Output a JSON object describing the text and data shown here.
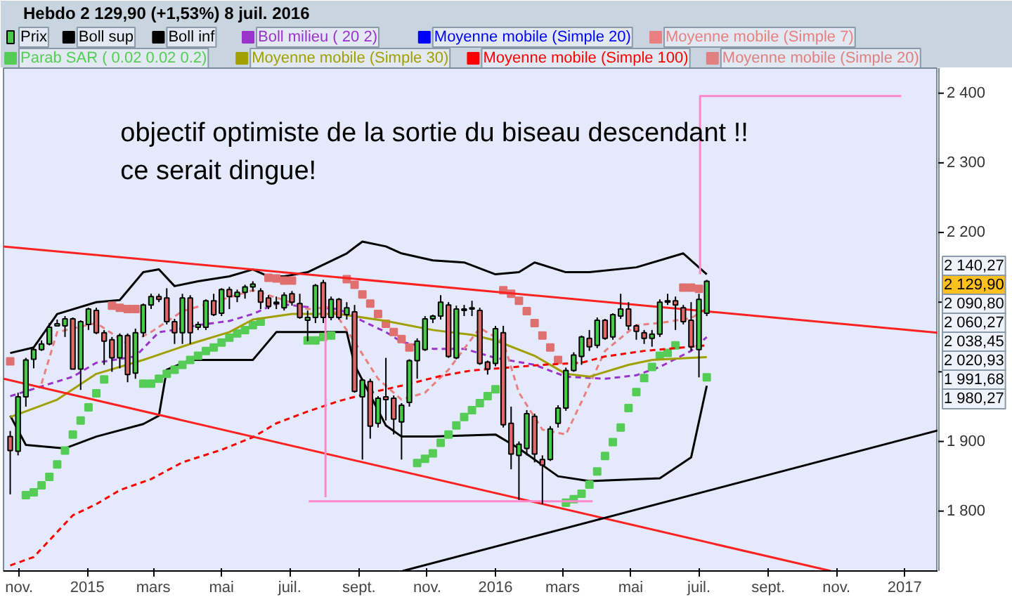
{
  "chart_data": {
    "type": "candlestick",
    "title": "Hebdo   2 129,90 (+1,53%)   8 juil. 2016",
    "legend": "top",
    "grid": false,
    "xlim": [
      "2014-10-18",
      "2017-01-31"
    ],
    "xticks": [
      {
        "value": "2014-11-01",
        "label": "nov."
      },
      {
        "value": "2015-01-01",
        "label": "2015"
      },
      {
        "value": "2015-03-01",
        "label": "mars"
      },
      {
        "value": "2015-05-01",
        "label": "mai"
      },
      {
        "value": "2015-07-01",
        "label": "juil."
      },
      {
        "value": "2015-09-01",
        "label": "sept."
      },
      {
        "value": "2015-11-01",
        "label": "nov."
      },
      {
        "value": "2016-01-01",
        "label": "2016"
      },
      {
        "value": "2016-03-01",
        "label": "mars"
      },
      {
        "value": "2016-05-01",
        "label": "mai"
      },
      {
        "value": "2016-07-01",
        "label": "juil."
      },
      {
        "value": "2016-09-01",
        "label": "sept."
      },
      {
        "value": "2016-11-01",
        "label": "nov."
      },
      {
        "value": "2017-01-01",
        "label": "2017"
      }
    ],
    "ylim": [
      1714,
      2436
    ],
    "yticks": [
      {
        "value": 1800,
        "label": "1 800"
      },
      {
        "value": 1900,
        "label": "1 900"
      },
      {
        "value": 2000,
        "label": null
      },
      {
        "value": 2100,
        "label": null
      },
      {
        "value": 2200,
        "label": "2 200"
      },
      {
        "value": 2300,
        "label": "2 300"
      },
      {
        "value": 2400,
        "label": "2 400"
      }
    ],
    "annotations": [
      "objectif optimiste de la sortie du biseau descendant !!",
      "ce serait dingue!",
      "2 140,27",
      "2 129,90",
      "2 090,80",
      "2 060,27",
      "2 038,45",
      "2 020,93",
      "1 991,68",
      "1 980,27"
    ],
    "series": [
      {
        "name": "Prix",
        "color": "#000000",
        "x": [
          "2014-10-24",
          "2014-10-31",
          "2014-11-07",
          "2014-11-14",
          "2014-11-21",
          "2014-11-28",
          "2014-12-05",
          "2014-12-12",
          "2014-12-19",
          "2014-12-26",
          "2015-01-02",
          "2015-01-09",
          "2015-01-16",
          "2015-01-23",
          "2015-01-30",
          "2015-02-06",
          "2015-02-13",
          "2015-02-20",
          "2015-02-27",
          "2015-03-06",
          "2015-03-13",
          "2015-03-20",
          "2015-03-27",
          "2015-04-03",
          "2015-04-10",
          "2015-04-17",
          "2015-04-24",
          "2015-05-01",
          "2015-05-08",
          "2015-05-15",
          "2015-05-22",
          "2015-05-29",
          "2015-06-05",
          "2015-06-12",
          "2015-06-19",
          "2015-06-26",
          "2015-07-03",
          "2015-07-10",
          "2015-07-17",
          "2015-07-24",
          "2015-07-31",
          "2015-08-07",
          "2015-08-14",
          "2015-08-21",
          "2015-08-28",
          "2015-09-04",
          "2015-09-11",
          "2015-09-18",
          "2015-09-25",
          "2015-10-02",
          "2015-10-09",
          "2015-10-16",
          "2015-10-23",
          "2015-10-30",
          "2015-11-06",
          "2015-11-13",
          "2015-11-20",
          "2015-11-27",
          "2015-12-04",
          "2015-12-11",
          "2015-12-18",
          "2015-12-25",
          "2016-01-01",
          "2016-01-08",
          "2016-01-15",
          "2016-01-22",
          "2016-01-29",
          "2016-02-05",
          "2016-02-12",
          "2016-02-19",
          "2016-02-26",
          "2016-03-04",
          "2016-03-11",
          "2016-03-18",
          "2016-03-25",
          "2016-04-01",
          "2016-04-08",
          "2016-04-15",
          "2016-04-22",
          "2016-04-29",
          "2016-05-06",
          "2016-05-13",
          "2016-05-20",
          "2016-05-27",
          "2016-06-03",
          "2016-06-10",
          "2016-06-17",
          "2016-06-24",
          "2016-07-01",
          "2016-07-08"
        ],
        "ohlc": [
          [
            1907,
            1915,
            1824,
            1887
          ],
          [
            1886,
            1970,
            1880,
            1964
          ],
          [
            1964,
            2020,
            1950,
            2017
          ],
          [
            2018,
            2035,
            2005,
            2032
          ],
          [
            2032,
            2045,
            2030,
            2040
          ],
          [
            2040,
            2070,
            2038,
            2064
          ],
          [
            2066,
            2075,
            2065,
            2069
          ],
          [
            2066,
            2080,
            2050,
            2076
          ],
          [
            2076,
            2078,
            2004,
            2004
          ],
          [
            2004,
            2074,
            1974,
            2072
          ],
          [
            2068,
            2092,
            2060,
            2090
          ],
          [
            2088,
            2092,
            2054,
            2056
          ],
          [
            2056,
            2060,
            2010,
            2044
          ],
          [
            2046,
            2050,
            2000,
            2020
          ],
          [
            2020,
            2055,
            2005,
            2052
          ],
          [
            2052,
            2055,
            1985,
            1996
          ],
          [
            1998,
            2062,
            1990,
            2056
          ],
          [
            2056,
            2098,
            2050,
            2096
          ],
          [
            2096,
            2112,
            2090,
            2108
          ],
          [
            2108,
            2112,
            2100,
            2104
          ],
          [
            2106,
            2120,
            2068,
            2072
          ],
          [
            2072,
            2076,
            2040,
            2056
          ],
          [
            2056,
            2112,
            2040,
            2106
          ],
          [
            2106,
            2110,
            2040,
            2056
          ],
          [
            2064,
            2072,
            2060,
            2068
          ],
          [
            2064,
            2104,
            2060,
            2102
          ],
          [
            2102,
            2112,
            2080,
            2082
          ],
          [
            2084,
            2120,
            2080,
            2118
          ],
          [
            2118,
            2122,
            2090,
            2108
          ],
          [
            2108,
            2118,
            2100,
            2114
          ],
          [
            2114,
            2125,
            2105,
            2122
          ],
          [
            2122,
            2130,
            2115,
            2126
          ],
          [
            2116,
            2120,
            2090,
            2100
          ],
          [
            2106,
            2110,
            2090,
            2094
          ],
          [
            2100,
            2108,
            2090,
            2098
          ],
          [
            2092,
            2114,
            2088,
            2110
          ],
          [
            2112,
            2116,
            2095,
            2100
          ],
          [
            2098,
            2112,
            2076,
            2078
          ],
          [
            2074,
            2088,
            2044,
            2078
          ],
          [
            2078,
            2126,
            2070,
            2124
          ],
          [
            2128,
            2132,
            2070,
            2078
          ],
          [
            2078,
            2108,
            2074,
            2104
          ],
          [
            2104,
            2106,
            2075,
            2078
          ],
          [
            2082,
            2100,
            2075,
            2092
          ],
          [
            2086,
            2096,
            1970,
            1972
          ],
          [
            1964,
            1990,
            1874,
            1988
          ],
          [
            1986,
            1990,
            1904,
            1922
          ],
          [
            1926,
            1965,
            1920,
            1962
          ],
          [
            1964,
            2020,
            1930,
            1960
          ],
          [
            1962,
            1966,
            1910,
            1932
          ],
          [
            1928,
            1955,
            1874,
            1952
          ],
          [
            1956,
            2018,
            1950,
            2016
          ],
          [
            2016,
            2048,
            1990,
            2044
          ],
          [
            2032,
            2080,
            2030,
            2076
          ],
          [
            2076,
            2082,
            2070,
            2080
          ],
          [
            2080,
            2110,
            2075,
            2100
          ],
          [
            2096,
            2100,
            2020,
            2022
          ],
          [
            2020,
            2095,
            2018,
            2090
          ],
          [
            2090,
            2096,
            2080,
            2088
          ],
          [
            2090,
            2102,
            2080,
            2092
          ],
          [
            2088,
            2092,
            2010,
            2012
          ],
          [
            2014,
            2016,
            1996,
            2004
          ],
          [
            2012,
            2066,
            2008,
            2062
          ],
          [
            2056,
            2066,
            1920,
            1924
          ],
          [
            1926,
            1950,
            1860,
            1882
          ],
          [
            1880,
            1900,
            1816,
            1896
          ],
          [
            1890,
            1945,
            1880,
            1940
          ],
          [
            1936,
            1940,
            1870,
            1882
          ],
          [
            1874,
            1880,
            1810,
            1866
          ],
          [
            1874,
            1922,
            1872,
            1918
          ],
          [
            1926,
            1952,
            1920,
            1948
          ],
          [
            1948,
            2006,
            1944,
            2002
          ],
          [
            2002,
            2028,
            2000,
            2024
          ],
          [
            2022,
            2052,
            2010,
            2050
          ],
          [
            2048,
            2060,
            2030,
            2036
          ],
          [
            2038,
            2078,
            2034,
            2074
          ],
          [
            2074,
            2076,
            2046,
            2048
          ],
          [
            2050,
            2084,
            2046,
            2082
          ],
          [
            2080,
            2112,
            2076,
            2090
          ],
          [
            2090,
            2100,
            2060,
            2066
          ],
          [
            2066,
            2068,
            2046,
            2058
          ],
          [
            2056,
            2060,
            2040,
            2048
          ],
          [
            2048,
            2060,
            2036,
            2054
          ],
          [
            2054,
            2104,
            2050,
            2100
          ],
          [
            2100,
            2112,
            2096,
            2102
          ],
          [
            2102,
            2108,
            2060,
            2096
          ],
          [
            2092,
            2096,
            2068,
            2072
          ],
          [
            2074,
            2100,
            2030,
            2036
          ],
          [
            2032,
            2112,
            1992,
            2104
          ],
          [
            2084,
            2132,
            2080,
            2130
          ]
        ]
      },
      {
        "name": "Boll sup",
        "type": "line",
        "color": "#000000",
        "line_style": "solid",
        "x": [
          "2014-10-24",
          "2014-11-14",
          "2014-12-05",
          "2015-01-09",
          "2015-01-30",
          "2015-02-20",
          "2015-03-06",
          "2015-03-20",
          "2015-04-10",
          "2015-05-08",
          "2015-05-29",
          "2015-06-12",
          "2015-06-26",
          "2015-07-17",
          "2015-08-21",
          "2015-09-04",
          "2015-09-25",
          "2015-10-09",
          "2015-11-06",
          "2015-12-04",
          "2016-01-01",
          "2016-01-22",
          "2016-02-05",
          "2016-03-04",
          "2016-03-25",
          "2016-05-06",
          "2016-06-17",
          "2016-07-08"
        ],
        "values": [
          2027,
          2035,
          2083,
          2100,
          2103,
          2143,
          2147,
          2123,
          2130,
          2137,
          2147,
          2137,
          2137,
          2143,
          2170,
          2187,
          2180,
          2170,
          2160,
          2157,
          2140,
          2143,
          2157,
          2143,
          2143,
          2150,
          2170,
          2140
        ]
      },
      {
        "name": "Boll inf",
        "type": "line",
        "color": "#000000",
        "line_style": "solid",
        "x": [
          "2014-10-24",
          "2014-11-07",
          "2014-12-12",
          "2015-01-09",
          "2015-02-20",
          "2015-03-06",
          "2015-03-13",
          "2015-04-03",
          "2015-05-29",
          "2015-06-19",
          "2015-08-21",
          "2015-08-28",
          "2015-09-25",
          "2015-10-09",
          "2015-11-06",
          "2016-01-01",
          "2016-01-22",
          "2016-02-26",
          "2016-03-25",
          "2016-05-27",
          "2016-06-24",
          "2016-07-08"
        ],
        "values": [
          1937,
          1895,
          1890,
          1907,
          1925,
          1937,
          2003,
          2017,
          2017,
          2057,
          2057,
          2010,
          1923,
          1907,
          1907,
          1910,
          1890,
          1850,
          1843,
          1847,
          1877,
          1980
        ]
      },
      {
        "name": "Boll milieu ( 20 2)",
        "type": "line",
        "color": "#9933cc",
        "line_style": "dashed",
        "x": [
          "2014-10-24",
          "2014-12-19",
          "2015-01-09",
          "2015-02-13",
          "2015-03-06",
          "2015-03-20",
          "2015-04-10",
          "2015-05-08",
          "2015-05-29",
          "2015-06-19",
          "2015-07-17",
          "2015-08-14",
          "2015-09-04",
          "2015-09-25",
          "2015-10-09",
          "2015-11-06",
          "2015-12-04",
          "2016-01-01",
          "2016-02-05",
          "2016-03-04",
          "2016-04-08",
          "2016-05-06",
          "2016-05-27",
          "2016-06-24",
          "2016-07-08"
        ],
        "values": [
          1965,
          1993,
          2013,
          2022,
          2057,
          2060,
          2067,
          2073,
          2083,
          2098,
          2093,
          2090,
          2073,
          2057,
          2043,
          2033,
          2033,
          2020,
          2010,
          1993,
          1990,
          1995,
          2007,
          2030,
          2050
        ]
      },
      {
        "name": "Moyenne mobile (Simple 20)",
        "type": "line",
        "color": "#0000ff"
      },
      {
        "name": "Moyenne mobile (Simple 7)",
        "type": "line",
        "color": "#e88080",
        "line_style": "dashed",
        "x": [
          "2014-11-21",
          "2014-12-05",
          "2015-01-09",
          "2015-02-06",
          "2015-02-27",
          "2015-03-27",
          "2015-04-24",
          "2015-05-29",
          "2015-06-26",
          "2015-07-17",
          "2015-08-07",
          "2015-08-28",
          "2015-09-18",
          "2015-10-09",
          "2015-10-30",
          "2015-11-20",
          "2015-12-18",
          "2016-01-08",
          "2016-01-22",
          "2016-02-12",
          "2016-03-04",
          "2016-03-18",
          "2016-04-08",
          "2016-05-06",
          "2016-05-27",
          "2016-06-24",
          "2016-07-08"
        ],
        "values": [
          1983,
          2057,
          2070,
          2040,
          2057,
          2087,
          2100,
          2117,
          2103,
          2090,
          2093,
          2043,
          1990,
          1960,
          1970,
          2003,
          2063,
          2043,
          1970,
          1917,
          1910,
          1957,
          2030,
          2067,
          2070,
          2077,
          2091
        ]
      },
      {
        "name": "Parab SAR ( 0.02 0.02 0.2)",
        "type": "scatter",
        "color": "#55cc55",
        "marker": "square",
        "x": [
          "2014-10-24",
          "2014-11-07",
          "2014-11-14",
          "2014-11-21",
          "2014-11-28",
          "2014-12-05",
          "2014-12-12",
          "2014-12-19",
          "2014-12-26",
          "2015-01-02",
          "2015-01-09",
          "2015-01-16",
          "2015-01-23",
          "2015-01-30",
          "2015-02-06",
          "2015-02-13",
          "2015-02-20",
          "2015-02-27",
          "2015-03-06",
          "2015-03-13",
          "2015-03-20",
          "2015-03-27",
          "2015-04-03",
          "2015-04-10",
          "2015-04-17",
          "2015-04-24",
          "2015-05-01",
          "2015-05-08",
          "2015-05-15",
          "2015-05-22",
          "2015-05-29",
          "2015-06-05",
          "2015-06-12",
          "2015-06-19",
          "2015-06-26",
          "2015-07-03",
          "2015-07-17",
          "2015-07-24",
          "2015-07-31",
          "2015-08-07",
          "2015-08-21",
          "2015-08-28",
          "2015-09-04",
          "2015-09-11",
          "2015-09-18",
          "2015-09-25",
          "2015-10-02",
          "2015-10-09",
          "2015-10-16",
          "2015-10-23",
          "2015-10-30",
          "2015-11-06",
          "2015-11-13",
          "2015-11-20",
          "2015-11-27",
          "2015-12-04",
          "2015-12-11",
          "2015-12-18",
          "2015-12-25",
          "2016-01-01",
          "2016-01-08",
          "2016-01-15",
          "2016-01-22",
          "2016-01-29",
          "2016-02-05",
          "2016-02-12",
          "2016-02-19",
          "2016-02-26",
          "2016-03-04",
          "2016-03-11",
          "2016-03-18",
          "2016-03-25",
          "2016-04-01",
          "2016-04-08",
          "2016-04-15",
          "2016-04-22",
          "2016-04-29",
          "2016-05-06",
          "2016-05-13",
          "2016-05-20",
          "2016-05-27",
          "2016-06-03",
          "2016-06-10",
          "2016-06-17",
          "2016-06-24",
          "2016-07-01",
          "2016-07-08"
        ],
        "values": [
          2015,
          1823,
          1827,
          1837,
          1849,
          1867,
          1887,
          1910,
          1930,
          1949,
          1969,
          1989,
          2095,
          2092,
          2090,
          2090,
          1983,
          1983,
          1990,
          1997,
          2003,
          2010,
          2017,
          2023,
          2030,
          2035,
          2042,
          2049,
          2055,
          2060,
          2067,
          2072,
          2135,
          2134,
          2131,
          2131,
          2045,
          2045,
          2050,
          2052,
          2133,
          2125,
          2111,
          2098,
          2083,
          2069,
          2057,
          2047,
          2035,
          1869,
          1875,
          1883,
          1898,
          1910,
          1923,
          1935,
          1945,
          1955,
          1965,
          1975,
          2117,
          2112,
          2102,
          2087,
          2070,
          2052,
          2035,
          2017,
          1812,
          1817,
          1825,
          1838,
          1857,
          1879,
          1899,
          1920,
          1948,
          1971,
          1991,
          2007,
          2023,
          2027,
          2038,
          2121,
          2121,
          2119,
          1992
        ],
        "colors": [
          "#e07070",
          "#55cc55",
          "#55cc55",
          "#55cc55",
          "#55cc55",
          "#55cc55",
          "#55cc55",
          "#55cc55",
          "#55cc55",
          "#55cc55",
          "#55cc55",
          "#55cc55",
          "#e07070",
          "#e07070",
          "#e07070",
          "#e07070",
          "#55cc55",
          "#55cc55",
          "#55cc55",
          "#55cc55",
          "#55cc55",
          "#55cc55",
          "#55cc55",
          "#55cc55",
          "#55cc55",
          "#55cc55",
          "#55cc55",
          "#55cc55",
          "#55cc55",
          "#55cc55",
          "#55cc55",
          "#55cc55",
          "#e07070",
          "#e07070",
          "#e07070",
          "#e07070",
          "#55cc55",
          "#55cc55",
          "#55cc55",
          "#55cc55",
          "#e07070",
          "#e07070",
          "#e07070",
          "#e07070",
          "#e07070",
          "#e07070",
          "#e07070",
          "#e07070",
          "#e07070",
          "#55cc55",
          "#55cc55",
          "#55cc55",
          "#55cc55",
          "#55cc55",
          "#55cc55",
          "#55cc55",
          "#55cc55",
          "#55cc55",
          "#55cc55",
          "#55cc55",
          "#e07070",
          "#e07070",
          "#e07070",
          "#e07070",
          "#e07070",
          "#e07070",
          "#e07070",
          "#e07070",
          "#55cc55",
          "#55cc55",
          "#55cc55",
          "#55cc55",
          "#55cc55",
          "#55cc55",
          "#55cc55",
          "#55cc55",
          "#55cc55",
          "#55cc55",
          "#55cc55",
          "#55cc55",
          "#55cc55",
          "#55cc55",
          "#55cc55",
          "#e07070",
          "#e07070",
          "#e07070",
          "#55cc55"
        ]
      },
      {
        "name": "Moyenne mobile (Simple 30)",
        "type": "line",
        "color": "#a0a000",
        "line_style": "solid",
        "x": [
          "2014-10-24",
          "2014-12-05",
          "2015-01-09",
          "2015-02-20",
          "2015-04-03",
          "2015-05-08",
          "2015-05-29",
          "2015-07-03",
          "2015-08-14",
          "2015-09-25",
          "2015-11-06",
          "2015-12-11",
          "2016-01-01",
          "2016-02-05",
          "2016-03-04",
          "2016-03-25",
          "2016-04-29",
          "2016-05-20",
          "2016-06-24",
          "2016-07-08"
        ],
        "values": [
          1935,
          1960,
          1997,
          2017,
          2040,
          2057,
          2075,
          2083,
          2083,
          2073,
          2060,
          2053,
          2045,
          2023,
          1997,
          1993,
          2010,
          2017,
          2020,
          2021
        ]
      },
      {
        "name": "Moyenne mobile (Simple 100)",
        "type": "line",
        "color": "#ff0000",
        "line_style": "dashed",
        "x": [
          "2014-10-24",
          "2014-11-14",
          "2014-12-19",
          "2015-01-09",
          "2015-01-30",
          "2015-02-27",
          "2015-03-27",
          "2015-05-01",
          "2015-05-29",
          "2015-06-19",
          "2015-07-17",
          "2015-08-14",
          "2015-09-11",
          "2015-10-09",
          "2015-11-13",
          "2015-12-11",
          "2016-02-12",
          "2016-03-18",
          "2016-04-08",
          "2016-05-13",
          "2016-06-10",
          "2016-07-08"
        ],
        "values": [
          1722,
          1734,
          1794,
          1810,
          1830,
          1846,
          1870,
          1888,
          1906,
          1926,
          1943,
          1958,
          1970,
          1980,
          1994,
          2002,
          2010,
          2013,
          2022,
          2030,
          2034,
          2038
        ]
      },
      {
        "name": "Moyenne mobile (Simple 20)",
        "type": "line",
        "color": "#e08080"
      },
      {
        "type": "line",
        "color": "#ff2020",
        "line_style": "solid",
        "x": [
          "2014-10-18",
          "2017-01-31"
        ],
        "values": [
          2180,
          2056
        ]
      },
      {
        "type": "line",
        "color": "#ff2020",
        "line_style": "solid",
        "x": [
          "2014-10-18",
          "2016-10-27"
        ],
        "values": [
          1990,
          1714
        ]
      },
      {
        "type": "line",
        "color": "#000000",
        "line_style": "solid",
        "x": [
          "2015-10-10",
          "2017-01-31"
        ],
        "values": [
          1714,
          1916
        ]
      },
      {
        "type": "line",
        "color": "#ff88cc",
        "line_style": "solid",
        "x": [
          "2015-08-02",
          "2015-08-02"
        ],
        "values": [
          2104,
          1820
        ]
      },
      {
        "type": "line",
        "color": "#ff88cc",
        "line_style": "solid",
        "x": [
          "2015-07-18",
          "2016-03-28"
        ],
        "values": [
          1814,
          1814
        ]
      },
      {
        "type": "line",
        "color": "#ff88cc",
        "line_style": "solid",
        "x": [
          "2016-07-02",
          "2016-07-02",
          "2016-12-29"
        ],
        "values": [
          2140,
          2396,
          2396
        ]
      }
    ]
  }
}
